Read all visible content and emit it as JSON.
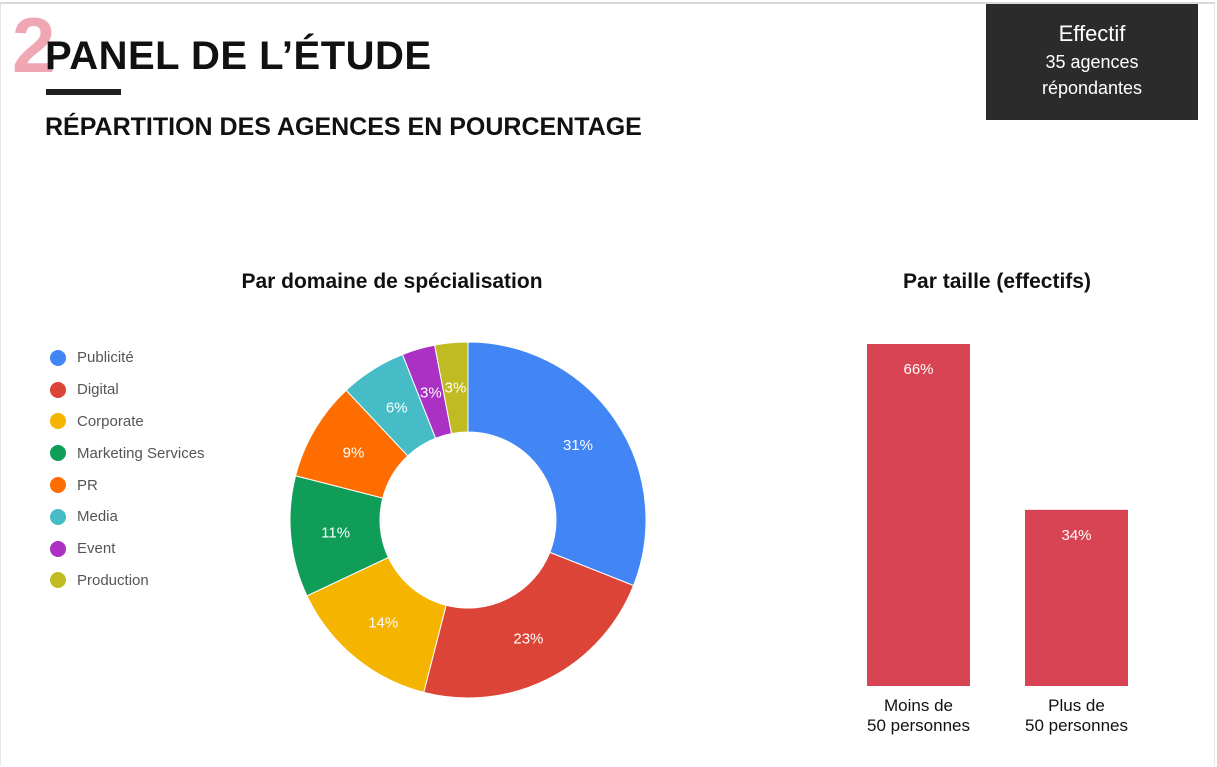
{
  "header": {
    "section_number": "2",
    "title": "PANEL DE L’ÉTUDE",
    "subtitle": "RÉPARTITION DES AGENCES EN POURCENTAGE"
  },
  "effectif_box": {
    "title": "Effectif",
    "text": "35 agences\nrépondantes"
  },
  "chart_data": [
    {
      "type": "pie",
      "donut": true,
      "title": "Par domaine de spécialisation",
      "legend_position": "left",
      "categories": [
        "Publicité",
        "Digital",
        "Corporate",
        "Marketing Services",
        "PR",
        "Media",
        "Event",
        "Production"
      ],
      "values": [
        31,
        23,
        14,
        11,
        9,
        6,
        3,
        3
      ],
      "labels": [
        "31%",
        "23%",
        "14%",
        "11%",
        "9%",
        "6%",
        "3%",
        "3%"
      ],
      "colors": [
        "#4285f4",
        "#db4437",
        "#f4b400",
        "#0f9d58",
        "#ff6d01",
        "#46bdc6",
        "#ab30c4",
        "#c0bb22"
      ]
    },
    {
      "type": "bar",
      "title": "Par taille (effectifs)",
      "categories": [
        "Moins de\n50 personnes",
        "Plus de\n50 personnes"
      ],
      "values": [
        66,
        34
      ],
      "labels": [
        "66%",
        "34%"
      ],
      "color": "#d94454",
      "grid": false
    }
  ]
}
